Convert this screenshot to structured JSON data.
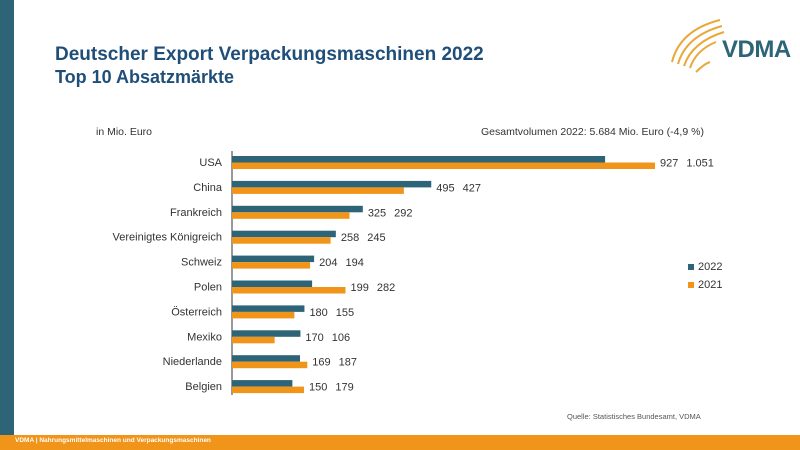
{
  "header": {
    "title": "Deutscher Export Verpackungsmaschinen  2022",
    "subtitle": "Top 10 Absatzmärkte",
    "logo_text": "VDMA"
  },
  "footer": {
    "text": "VDMA | Nahrungsmittelmaschinen und Verpackungsmaschinen"
  },
  "colors": {
    "series_2022": "#2d6477",
    "series_2021": "#f0941a",
    "title": "#1f4e79"
  },
  "chart_data": {
    "type": "bar",
    "orientation": "horizontal",
    "unit_label": "in Mio. Euro",
    "annotation": "Gesamtvolumen 2022: 5.684 Mio. Euro (-4,9 %)",
    "source": "Quelle:  Statistisches  Bundesamt,   VDMA",
    "categories": [
      "USA",
      "China",
      "Frankreich",
      "Vereinigtes Königreich",
      "Schweiz",
      "Polen",
      "Österreich",
      "Mexiko",
      "Niederlande",
      "Belgien"
    ],
    "series": [
      {
        "name": "2022",
        "values": [
          927,
          495,
          325,
          258,
          204,
          199,
          180,
          170,
          169,
          150
        ],
        "labels": [
          "927",
          "495",
          "325",
          "258",
          "204",
          "199",
          "180",
          "170",
          "169",
          "150"
        ]
      },
      {
        "name": "2021",
        "values": [
          1051,
          427,
          292,
          245,
          194,
          282,
          155,
          106,
          187,
          179
        ],
        "labels": [
          "1.051",
          "427",
          "292",
          "245",
          "194",
          "282",
          "155",
          "106",
          "187",
          "179"
        ]
      }
    ],
    "legend_position": "right",
    "grid": false
  }
}
